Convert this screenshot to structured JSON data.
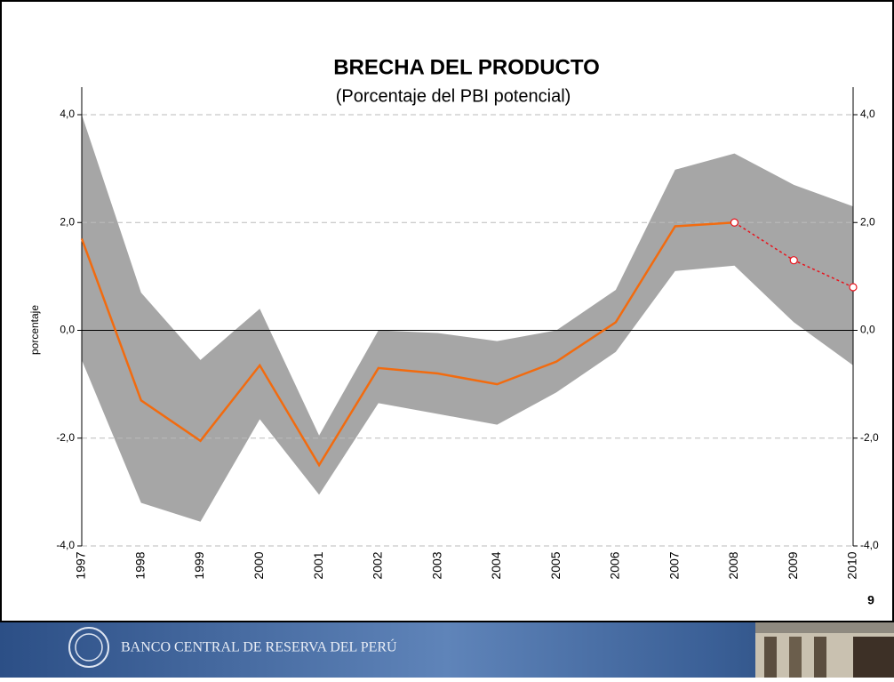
{
  "chart_data": {
    "type": "line",
    "title": "BRECHA DEL PRODUCTO",
    "subtitle": "(Porcentaje del PBI potencial)",
    "y_label": "porcentaje",
    "categories": [
      "1997",
      "1998",
      "1999",
      "2000",
      "2001",
      "2002",
      "2003",
      "2004",
      "2005",
      "2006",
      "2007",
      "2008",
      "2009",
      "2010"
    ],
    "series": [
      {
        "color": "#a6a6a6",
        "values": [
          4.0,
          0.7,
          -0.55,
          0.4,
          -1.95,
          0.0,
          -0.05,
          -0.2,
          0.0,
          0.75,
          2.98,
          3.28,
          2.7,
          2.3
        ]
      },
      {
        "color": "#a6a6a6",
        "values": [
          -0.55,
          -3.2,
          -3.55,
          -1.65,
          -3.05,
          -1.35,
          -1.55,
          -1.75,
          -1.15,
          -0.4,
          1.1,
          1.2,
          0.15,
          -0.65
        ]
      },
      {
        "color": "#f26b0f",
        "values": [
          1.7,
          -1.3,
          -2.05,
          -0.65,
          -2.5,
          -0.7,
          -0.8,
          -1.0,
          -0.58,
          0.15,
          1.93,
          2.0,
          null,
          null
        ]
      },
      {
        "color": "#e8141d",
        "dashed": true,
        "markers": true,
        "values": [
          null,
          null,
          null,
          null,
          null,
          null,
          null,
          null,
          null,
          null,
          null,
          2.0,
          1.3,
          0.8
        ]
      }
    ],
    "ylim": [
      -4,
      4
    ],
    "yticks": [
      {
        "value": -4,
        "label": "-4,0"
      },
      {
        "value": -2,
        "label": "-2,0"
      },
      {
        "value": 0,
        "label": "0,0"
      },
      {
        "value": 2,
        "label": "2,0"
      },
      {
        "value": 4,
        "label": "4,0"
      }
    ],
    "y2lim": [
      -4,
      4
    ],
    "y2ticks": [
      {
        "value": -4,
        "label": "-4,0"
      },
      {
        "value": -2,
        "label": "-2,0"
      },
      {
        "value": 0,
        "label": "0,0"
      },
      {
        "value": 2,
        "label": "2,0"
      },
      {
        "value": 4,
        "label": "4,0"
      }
    ],
    "grid": true
  },
  "page_number": "9",
  "footer": "BANCO CENTRAL DE RESERVA DEL PERÚ"
}
